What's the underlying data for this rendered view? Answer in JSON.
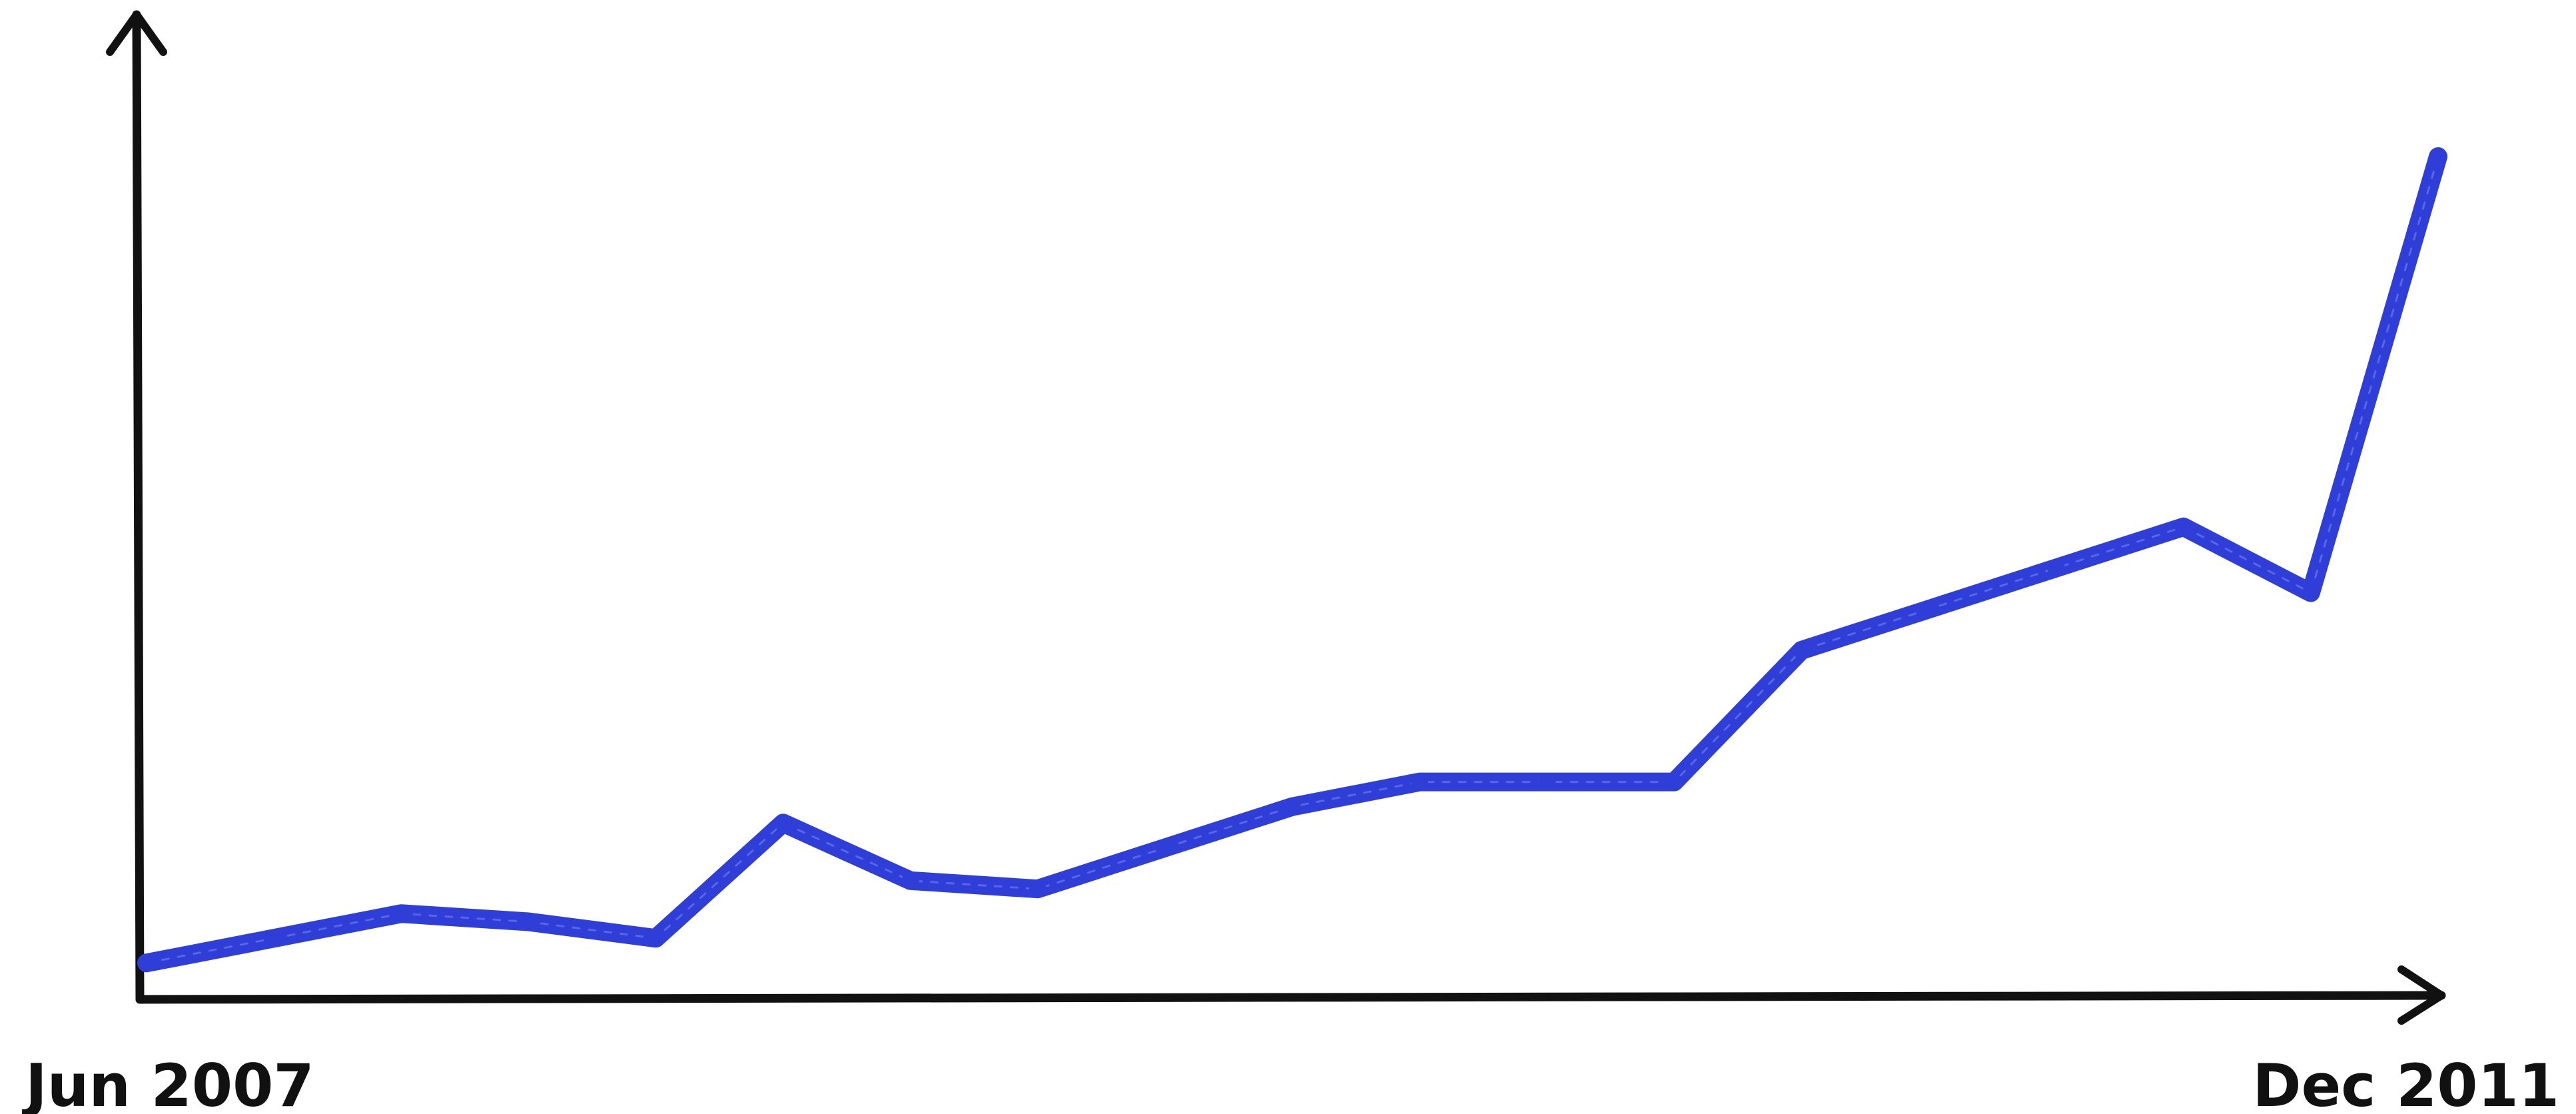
{
  "chart_data": {
    "type": "line",
    "title": "",
    "xlabel": "",
    "ylabel": "",
    "grid": false,
    "legend": "none",
    "x_tick_labels": {
      "start": "Jun 2007",
      "end": "Dec 2011"
    },
    "x_range": [
      "2007-06",
      "2011-12"
    ],
    "y_ticks_shown": false,
    "series": [
      {
        "color": "#2f3ed6",
        "points": [
          {
            "x": "2007-06",
            "y": 2
          },
          {
            "x": "2007-09",
            "y": 5
          },
          {
            "x": "2007-12",
            "y": 8
          },
          {
            "x": "2008-03",
            "y": 7
          },
          {
            "x": "2008-06",
            "y": 5
          },
          {
            "x": "2008-09",
            "y": 19
          },
          {
            "x": "2008-12",
            "y": 12
          },
          {
            "x": "2009-03",
            "y": 11
          },
          {
            "x": "2009-06",
            "y": 16
          },
          {
            "x": "2009-09",
            "y": 21
          },
          {
            "x": "2009-12",
            "y": 24
          },
          {
            "x": "2010-03",
            "y": 24
          },
          {
            "x": "2010-06",
            "y": 24
          },
          {
            "x": "2010-09",
            "y": 40
          },
          {
            "x": "2010-12",
            "y": 45
          },
          {
            "x": "2011-03",
            "y": 50
          },
          {
            "x": "2011-06",
            "y": 55
          },
          {
            "x": "2011-09",
            "y": 47
          },
          {
            "x": "2011-12",
            "y": 100
          }
        ]
      }
    ]
  }
}
